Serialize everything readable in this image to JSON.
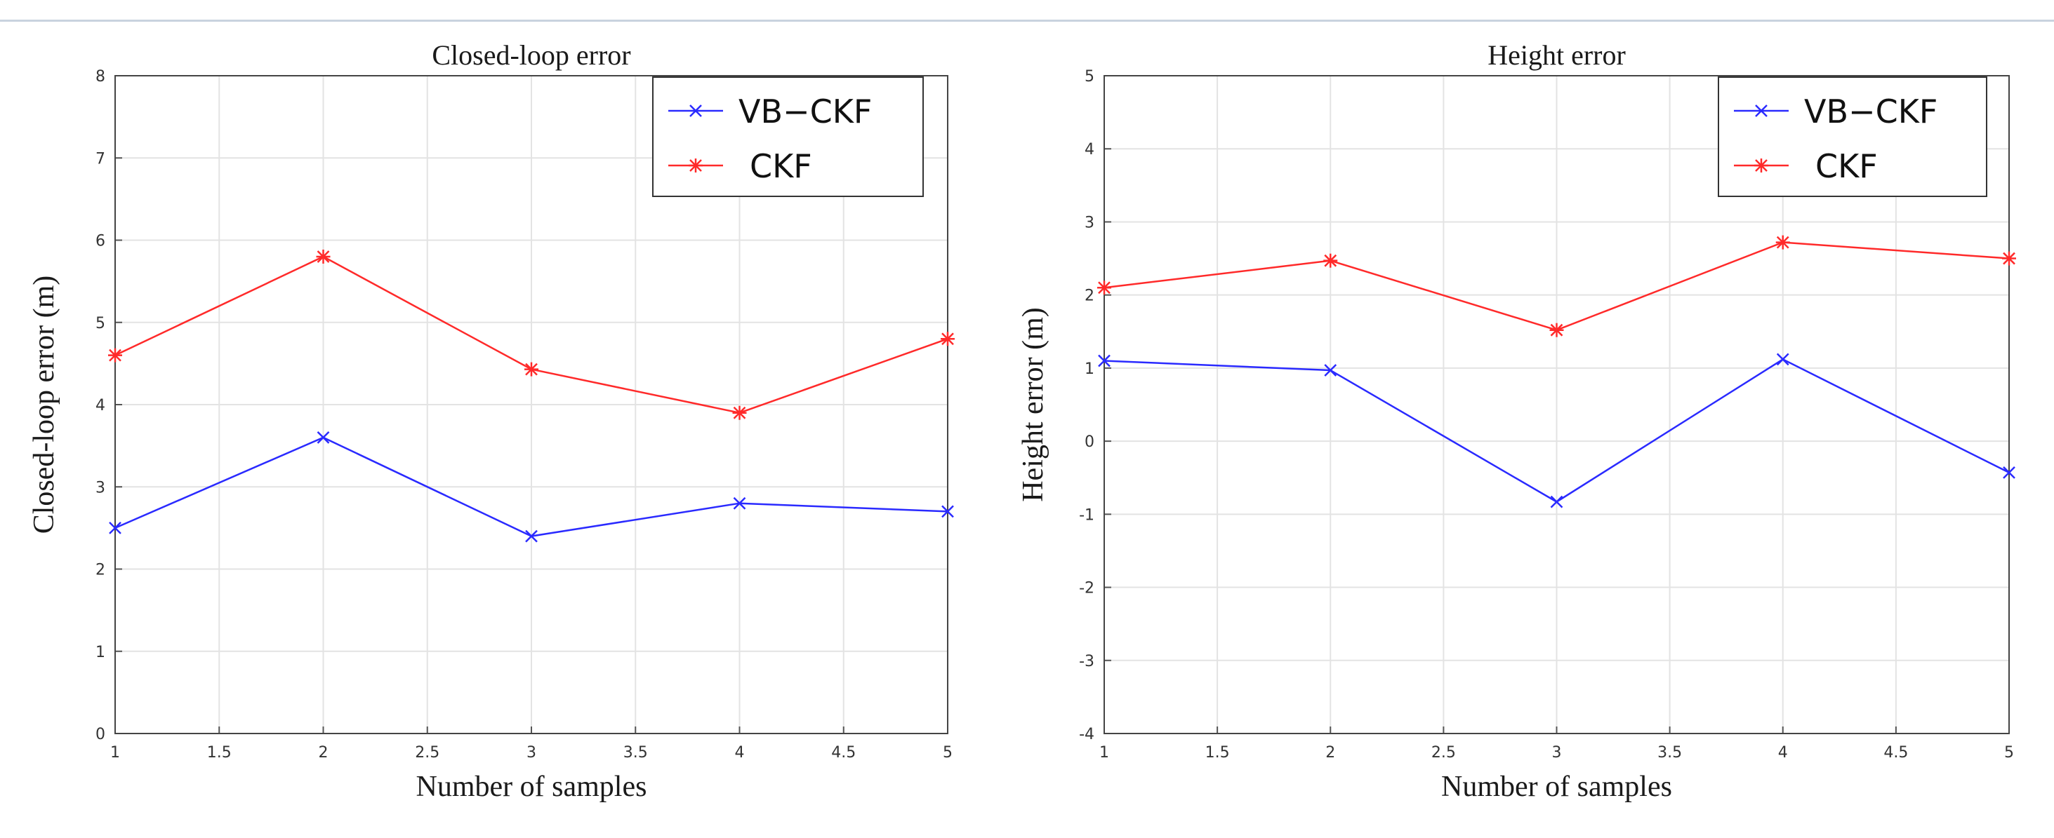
{
  "chart_data": [
    {
      "type": "line",
      "title": "Closed-loop error",
      "xlabel": "Number of samples",
      "ylabel": "Closed-loop error (m)",
      "x": [
        1,
        2,
        3,
        4,
        5
      ],
      "xlim": [
        1,
        5
      ],
      "ylim": [
        0,
        8
      ],
      "xticks": [
        "1",
        "1.5",
        "2",
        "2.5",
        "3",
        "3.5",
        "4",
        "4.5",
        "5"
      ],
      "yticks": [
        "0",
        "1",
        "2",
        "3",
        "4",
        "5",
        "6",
        "7",
        "8"
      ],
      "grid": true,
      "legend_position": "top-right",
      "series": [
        {
          "name": "VB−CKF",
          "color": "#2a2aff",
          "marker": "x",
          "values": [
            2.5,
            3.6,
            2.4,
            2.8,
            2.7
          ]
        },
        {
          "name": "CKF",
          "color": "#ff2a2a",
          "marker": "*",
          "values": [
            4.6,
            5.8,
            4.43,
            3.9,
            4.8
          ]
        }
      ]
    },
    {
      "type": "line",
      "title": "Height error",
      "xlabel": "Number of samples",
      "ylabel": "Height error (m)",
      "x": [
        1,
        2,
        3,
        4,
        5
      ],
      "xlim": [
        1,
        5
      ],
      "ylim": [
        -4,
        5
      ],
      "xticks": [
        "1",
        "1.5",
        "2",
        "2.5",
        "3",
        "3.5",
        "4",
        "4.5",
        "5"
      ],
      "yticks": [
        "-4",
        "-3",
        "-2",
        "-1",
        "0",
        "1",
        "2",
        "3",
        "4",
        "5"
      ],
      "grid": true,
      "legend_position": "top-right",
      "series": [
        {
          "name": "VB−CKF",
          "color": "#2a2aff",
          "marker": "x",
          "values": [
            1.1,
            0.97,
            -0.83,
            1.12,
            -0.43
          ]
        },
        {
          "name": "CKF",
          "color": "#ff2a2a",
          "marker": "*",
          "values": [
            2.1,
            2.47,
            1.52,
            2.72,
            2.5
          ]
        }
      ]
    }
  ]
}
